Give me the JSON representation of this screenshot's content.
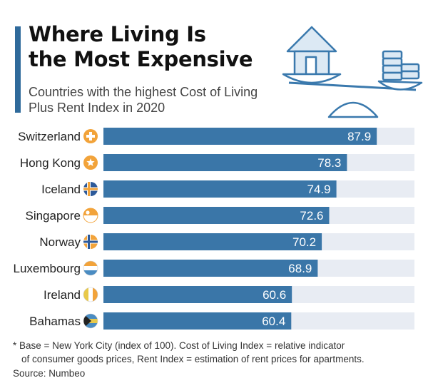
{
  "header": {
    "title_line1": "Where Living Is",
    "title_line2": "the Most Expensive",
    "subtitle_line1": "Countries with the highest Cost of Living",
    "subtitle_line2": "Plus Rent Index in 2020"
  },
  "colors": {
    "accent": "#2f6a9b",
    "bar": "#3a76a8",
    "track": "#e8ecf3",
    "flag_circle": "#f2a33a"
  },
  "chart_data": {
    "type": "bar",
    "orientation": "horizontal",
    "categories": [
      "Switzerland",
      "Hong Kong",
      "Iceland",
      "Singapore",
      "Norway",
      "Luxembourg",
      "Ireland",
      "Bahamas"
    ],
    "values": [
      87.9,
      78.3,
      74.9,
      72.6,
      70.2,
      68.9,
      60.6,
      60.4
    ],
    "xlim": [
      0,
      100
    ],
    "data_labels": [
      "87.9",
      "78.3",
      "74.9",
      "72.6",
      "70.2",
      "68.9",
      "60.6",
      "60.4"
    ],
    "flag_icons": [
      "switzerland-flag-icon",
      "hong-kong-flag-icon",
      "iceland-flag-icon",
      "singapore-flag-icon",
      "norway-flag-icon",
      "luxembourg-flag-icon",
      "ireland-flag-icon",
      "bahamas-flag-icon"
    ]
  },
  "footnote": {
    "line1": "* Base = New York City (index of 100). Cost of Living Index = relative indicator",
    "line2": "of consumer goods prices, Rent Index = estimation of rent prices for apartments.",
    "source": "Source: Numbeo"
  }
}
